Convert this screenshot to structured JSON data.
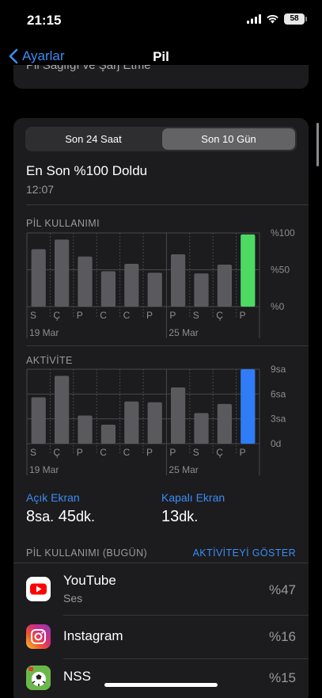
{
  "status": {
    "time": "21:15",
    "battery_level": "58"
  },
  "nav": {
    "back_label": "Ayarlar",
    "title": "Pil"
  },
  "previous_section": {
    "text": "Pil Sağlığı ve Şarj Etme"
  },
  "segment": {
    "options": [
      "Son 24 Saat",
      "Son 10 Gün"
    ],
    "selected": "Son 10 Gün"
  },
  "last_charge": {
    "title": "En Son %100 Doldu",
    "time": "12:07"
  },
  "battery_chart": {
    "label": "PİL KULLANIMI",
    "y_ticks": [
      "%100",
      "%50",
      "%0"
    ],
    "day_labels": [
      "S",
      "Ç",
      "P",
      "C",
      "C",
      "P",
      "P",
      "S",
      "Ç",
      "P"
    ],
    "date_labels": [
      "19 Mar",
      "25 Mar"
    ],
    "green_color": "#4cd964"
  },
  "activity_chart": {
    "label": "AKTİVİTE",
    "y_ticks": [
      "9sa",
      "6sa",
      "3sa",
      "0d"
    ],
    "day_labels": [
      "S",
      "Ç",
      "P",
      "C",
      "C",
      "P",
      "P",
      "S",
      "Ç",
      "P"
    ],
    "date_labels": [
      "19 Mar",
      "25 Mar"
    ],
    "blue_color": "#2f7cf6"
  },
  "chart_data": [
    {
      "type": "bar",
      "categories": [
        "S",
        "Ç",
        "P",
        "C",
        "C",
        "P",
        "P",
        "S",
        "Ç",
        "P"
      ],
      "values": [
        78,
        91,
        68,
        48,
        58,
        46,
        71,
        45,
        57,
        98
      ],
      "ylim": [
        0,
        100
      ],
      "title": "PİL KULLANIMI"
    },
    {
      "type": "bar",
      "categories": [
        "S",
        "Ç",
        "P",
        "C",
        "C",
        "P",
        "P",
        "S",
        "Ç",
        "P"
      ],
      "values": [
        5.6,
        8.2,
        3.4,
        2.3,
        5.1,
        5.0,
        6.8,
        3.7,
        4.8,
        9.0
      ],
      "ylim": [
        0,
        9
      ],
      "title": "AKTİVİTE"
    }
  ],
  "screen_stats": {
    "on_label": "Açık Ekran",
    "on_hours": "8",
    "on_hours_unit": "sa.",
    "on_minutes": "45",
    "on_minutes_unit": "dk.",
    "off_label": "Kapalı Ekran",
    "off_minutes": "13",
    "off_minutes_unit": "dk."
  },
  "usage": {
    "header": "PİL KULLANIMI (BUGÜN)",
    "link": "AKTİVİTEYİ GÖSTER",
    "apps": [
      {
        "name": "YouTube",
        "sub": "Ses",
        "pct": "%47",
        "icon": "youtube-icon"
      },
      {
        "name": "Instagram",
        "sub": "",
        "pct": "%16",
        "icon": "instagram-icon"
      },
      {
        "name": "NSS",
        "sub": "",
        "pct": "%15",
        "icon": "nss-icon"
      }
    ]
  }
}
